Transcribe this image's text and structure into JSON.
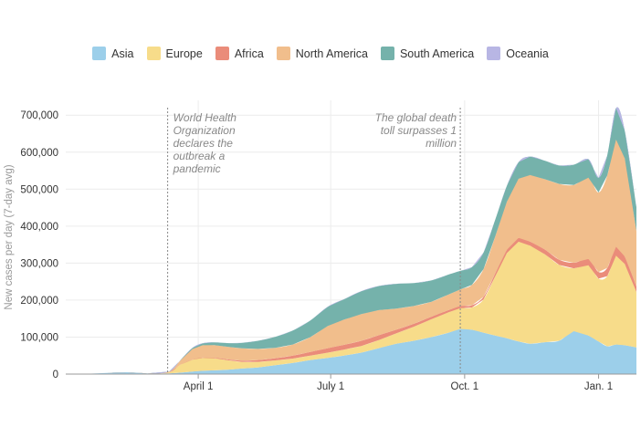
{
  "chart_data": {
    "type": "area",
    "stacked": true,
    "ylabel": "New cases per day (7-day avg)",
    "ylim": [
      0,
      740000
    ],
    "y_ticks": [
      0,
      100000,
      200000,
      300000,
      400000,
      500000,
      600000,
      700000
    ],
    "y_tick_labels": [
      "0",
      "100,000",
      "200,000",
      "300,000",
      "400,000",
      "500,000",
      "600,000",
      "700,000"
    ],
    "x_range": [
      "2020-01-01",
      "2021-01-27"
    ],
    "x_ticks": [
      "2020-04-01",
      "2020-07-01",
      "2020-10-01",
      "2021-01-01"
    ],
    "x_tick_labels": [
      "April 1",
      "July 1",
      "Oct. 1",
      "Jan. 1"
    ],
    "grid": true,
    "legend_position": "top",
    "x": [
      "2020-01-01",
      "2020-01-15",
      "2020-01-29",
      "2020-02-12",
      "2020-02-26",
      "2020-03-12",
      "2020-03-20",
      "2020-03-28",
      "2020-04-04",
      "2020-04-12",
      "2020-04-22",
      "2020-05-01",
      "2020-05-12",
      "2020-05-24",
      "2020-06-05",
      "2020-06-17",
      "2020-06-29",
      "2020-07-10",
      "2020-07-22",
      "2020-08-03",
      "2020-08-15",
      "2020-08-27",
      "2020-09-08",
      "2020-09-20",
      "2020-09-28",
      "2020-10-06",
      "2020-10-14",
      "2020-10-22",
      "2020-10-30",
      "2020-11-07",
      "2020-11-15",
      "2020-11-25",
      "2020-12-05",
      "2020-12-15",
      "2020-12-25",
      "2021-01-01",
      "2021-01-07",
      "2021-01-13",
      "2021-01-19",
      "2021-01-27"
    ],
    "series": [
      {
        "name": "Asia",
        "color": "#9ccfea",
        "values": [
          0,
          500,
          3000,
          5000,
          2000,
          2000,
          4000,
          7000,
          9000,
          10000,
          12000,
          15000,
          18000,
          24000,
          30000,
          38000,
          44000,
          50000,
          58000,
          70000,
          82000,
          90000,
          100000,
          112000,
          122000,
          120000,
          112000,
          104000,
          97000,
          88000,
          82000,
          86000,
          90000,
          116000,
          104000,
          88000,
          75000,
          80000,
          78000,
          72000
        ]
      },
      {
        "name": "Europe",
        "color": "#f7dc8a",
        "values": [
          0,
          0,
          0,
          0,
          0,
          3000,
          22000,
          32000,
          35000,
          33000,
          25000,
          18000,
          15000,
          13000,
          12000,
          12000,
          14000,
          16000,
          18000,
          22000,
          28000,
          38000,
          48000,
          55000,
          56000,
          60000,
          90000,
          160000,
          230000,
          270000,
          265000,
          238000,
          205000,
          170000,
          190000,
          170000,
          190000,
          240000,
          220000,
          150000
        ]
      },
      {
        "name": "Africa",
        "color": "#ea8c7a",
        "values": [
          0,
          0,
          0,
          0,
          0,
          0,
          0,
          500,
          1000,
          1500,
          2500,
          3500,
          5000,
          6000,
          8000,
          10000,
          12000,
          13000,
          14000,
          13000,
          10000,
          8000,
          7000,
          6000,
          6000,
          6000,
          7000,
          8000,
          9000,
          10000,
          11000,
          13000,
          14000,
          15000,
          17000,
          18000,
          22000,
          24000,
          20000,
          15000
        ]
      },
      {
        "name": "North America",
        "color": "#f1be8c",
        "values": [
          0,
          0,
          0,
          0,
          0,
          2000,
          12000,
          28000,
          33000,
          34000,
          34000,
          33000,
          30000,
          28000,
          30000,
          40000,
          60000,
          68000,
          72000,
          68000,
          57000,
          48000,
          40000,
          42000,
          45000,
          55000,
          75000,
          100000,
          130000,
          160000,
          180000,
          190000,
          205000,
          210000,
          220000,
          215000,
          250000,
          290000,
          265000,
          150000
        ]
      },
      {
        "name": "South America",
        "color": "#75b2ab",
        "values": [
          0,
          0,
          0,
          0,
          0,
          0,
          1000,
          3000,
          5000,
          7000,
          10000,
          15000,
          22000,
          30000,
          38000,
          45000,
          52000,
          55000,
          62000,
          65000,
          67000,
          62000,
          58000,
          54000,
          50000,
          48000,
          45000,
          45000,
          43000,
          45000,
          50000,
          50000,
          50000,
          55000,
          50000,
          40000,
          55000,
          85000,
          75000,
          65000
        ]
      },
      {
        "name": "Oceania",
        "color": "#b8b6e4",
        "values": [
          0,
          0,
          0,
          0,
          0,
          0,
          200,
          500,
          500,
          300,
          100,
          50,
          50,
          50,
          100,
          300,
          500,
          600,
          500,
          300,
          200,
          100,
          50,
          50,
          50,
          50,
          50,
          50,
          50,
          50,
          50,
          50,
          50,
          50,
          50,
          50,
          50,
          50,
          50,
          50
        ]
      }
    ],
    "annotations": [
      {
        "date": "2020-03-11",
        "lines": [
          "World Health",
          "Organization",
          "declares the",
          "outbreak a",
          "pandemic"
        ],
        "align": "left"
      },
      {
        "date": "2020-09-28",
        "lines": [
          "The global death",
          "toll surpasses 1",
          "million"
        ],
        "align": "right"
      }
    ]
  }
}
